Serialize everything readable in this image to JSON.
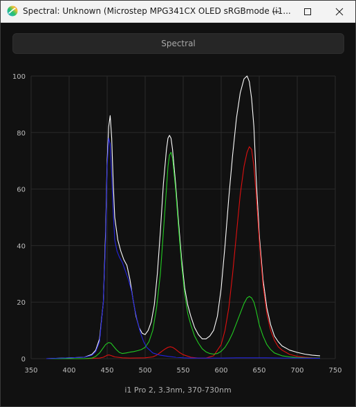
{
  "window": {
    "title": "Spectral: Unknown (Microstep MPG341CX OLED sRGBmode (i1...",
    "app_icon": "spectral-app-icon",
    "controls": {
      "minimize": "minimize-icon",
      "maximize": "maximize-icon",
      "close": "close-icon"
    }
  },
  "toolbar": {
    "spectral_label": "Spectral"
  },
  "footer": {
    "instrument_label": "i1 Pro 2, 3.3nm, 370-730nm"
  },
  "colors": {
    "background": "#111111",
    "grid": "#2a2a2a",
    "white_series": "#ffffff",
    "red_series": "#e01010",
    "green_series": "#22cc22",
    "blue_series": "#2222e0"
  },
  "chart_data": {
    "type": "line",
    "title": "",
    "xlabel": "",
    "ylabel": "",
    "xlim": [
      350,
      750
    ],
    "ylim": [
      0,
      100
    ],
    "xticks": [
      350,
      400,
      450,
      500,
      550,
      600,
      650,
      700,
      750
    ],
    "yticks": [
      0,
      20,
      40,
      60,
      80,
      100
    ],
    "grid": true,
    "legend": "none",
    "series": [
      {
        "color": "#ffffff",
        "x": [
          370,
          420,
          430,
          435,
          440,
          445,
          448,
          450,
          452,
          454,
          456,
          458,
          460,
          464,
          468,
          472,
          476,
          480,
          484,
          488,
          492,
          496,
          500,
          504,
          508,
          512,
          516,
          520,
          524,
          528,
          530,
          532,
          534,
          536,
          540,
          544,
          548,
          552,
          556,
          560,
          565,
          570,
          575,
          580,
          585,
          590,
          595,
          600,
          605,
          610,
          615,
          620,
          625,
          630,
          634,
          637,
          640,
          643,
          646,
          650,
          655,
          660,
          665,
          670,
          675,
          680,
          690,
          700,
          710,
          720,
          730
        ],
        "values": [
          0,
          0.5,
          1.5,
          3,
          7,
          20,
          45,
          70,
          82,
          86,
          78,
          62,
          50,
          42,
          38,
          35,
          33,
          28,
          21,
          15,
          11,
          9,
          8.5,
          10,
          13,
          19,
          30,
          45,
          62,
          74,
          78,
          79,
          78,
          74,
          62,
          48,
          35,
          25,
          19,
          15,
          11,
          8.5,
          7,
          7,
          8,
          10,
          15,
          25,
          40,
          57,
          72,
          85,
          94,
          99,
          100,
          98,
          92,
          82,
          64,
          44,
          28,
          18,
          12,
          8,
          6,
          4.5,
          3,
          2.2,
          1.6,
          1.2,
          1
        ]
      },
      {
        "color": "#e01010",
        "x": [
          370,
          420,
          440,
          445,
          448,
          450,
          452,
          454,
          456,
          458,
          460,
          470,
          480,
          500,
          510,
          515,
          520,
          525,
          530,
          533,
          536,
          540,
          545,
          550,
          560,
          570,
          580,
          590,
          600,
          605,
          610,
          615,
          620,
          625,
          630,
          634,
          637,
          640,
          643,
          646,
          650,
          655,
          660,
          665,
          670,
          675,
          680,
          690,
          700,
          710,
          720,
          730
        ],
        "values": [
          0,
          0,
          0.2,
          0.5,
          0.9,
          1.2,
          1.3,
          1.2,
          1.0,
          0.8,
          0.6,
          0.3,
          0.2,
          0.3,
          0.6,
          1.2,
          2.2,
          3.2,
          4.0,
          4.2,
          4.0,
          3.3,
          2.2,
          1.4,
          0.5,
          0.2,
          0.2,
          1,
          5,
          10,
          18,
          30,
          44,
          58,
          68,
          73,
          75,
          74,
          68,
          58,
          42,
          26,
          16,
          10,
          6.5,
          4.2,
          3,
          1.5,
          0.8,
          0.5,
          0.3,
          0.2
        ]
      },
      {
        "color": "#22cc22",
        "x": [
          370,
          420,
          430,
          435,
          440,
          444,
          448,
          452,
          455,
          458,
          462,
          466,
          470,
          475,
          480,
          485,
          490,
          495,
          500,
          505,
          510,
          515,
          520,
          524,
          528,
          530,
          532,
          534,
          536,
          540,
          544,
          548,
          552,
          556,
          560,
          565,
          570,
          575,
          580,
          585,
          590,
          595,
          600,
          605,
          610,
          615,
          620,
          625,
          630,
          634,
          637,
          640,
          643,
          646,
          650,
          655,
          660,
          665,
          670,
          680,
          690,
          700,
          710,
          720,
          730
        ],
        "values": [
          0,
          0,
          0.2,
          0.8,
          2,
          3.5,
          5,
          5.7,
          5.5,
          4.5,
          3.2,
          2.2,
          1.8,
          2,
          2.3,
          2.5,
          2.8,
          3.2,
          4,
          6,
          10,
          18,
          30,
          45,
          60,
          68,
          72,
          73,
          71,
          60,
          46,
          33,
          23,
          16,
          12,
          8,
          5.5,
          3.5,
          2.4,
          1.8,
          1.6,
          1.8,
          2.6,
          4,
          6.2,
          9,
          12.5,
          16,
          19.5,
          21.5,
          22,
          21.5,
          20,
          17,
          12,
          8,
          5,
          3.2,
          2,
          1,
          0.6,
          0.4,
          0.3,
          0.2,
          0.2
        ]
      },
      {
        "color": "#2222e0",
        "x": [
          370,
          420,
          430,
          435,
          440,
          445,
          448,
          450,
          452,
          454,
          456,
          458,
          460,
          463,
          466,
          470,
          474,
          478,
          482,
          486,
          490,
          494,
          498,
          502,
          506,
          510,
          520,
          530,
          540,
          550,
          560,
          580,
          600,
          620,
          640,
          660,
          680,
          700,
          730
        ],
        "values": [
          0,
          0.5,
          1.2,
          2.5,
          6,
          20,
          42,
          68,
          78,
          76,
          65,
          52,
          42,
          38,
          36,
          34,
          31,
          28,
          24,
          18,
          13,
          9,
          6,
          4,
          3,
          2,
          1.2,
          0.8,
          0.5,
          0.3,
          0.2,
          0.2,
          0.2,
          0.3,
          0.3,
          0.3,
          0.2,
          0.2,
          0.1
        ]
      }
    ]
  }
}
